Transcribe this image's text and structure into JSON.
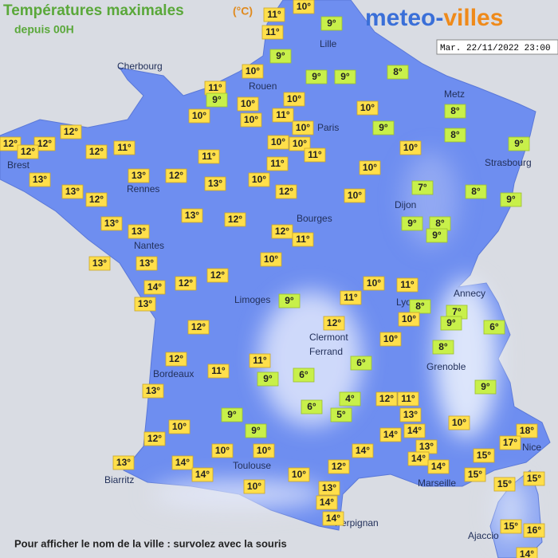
{
  "header": {
    "title": "Températures maximales",
    "unit": "(°C)",
    "subtitle": "depuis 00H"
  },
  "logo": {
    "first": "meteo-",
    "second": "villes"
  },
  "timestamp": "Mar. 22/11/2022 23:00",
  "cities": [
    "Cherbourg",
    "Lille",
    "Rouen",
    "Paris",
    "Metz",
    "Strasbourg",
    "Brest",
    "Rennes",
    "Dijon",
    "Bourges",
    "Nantes",
    "Limoges",
    "Annecy",
    "Lyon",
    "Clermont",
    "Ferrand",
    "Grenoble",
    "Bordeaux",
    "Toulouse",
    "Nice",
    "Marseille",
    "Biarritz",
    "Perpignan",
    "Ajaccio"
  ],
  "temperatures": [
    "11°",
    "10°",
    "11°",
    "9°",
    "9°",
    "9°",
    "9°",
    "8°",
    "10°",
    "11°",
    "9°",
    "10°",
    "10°",
    "10°",
    "10°",
    "11°",
    "10°",
    "8°",
    "10°",
    "9°",
    "8°",
    "12°",
    "12°",
    "12°",
    "12°",
    "12°",
    "11°",
    "10°",
    "10°",
    "10°",
    "9°",
    "11°",
    "11°",
    "11°",
    "13°",
    "13°",
    "12°",
    "13°",
    "10°",
    "10°",
    "12°",
    "13°",
    "12°",
    "7°",
    "8°",
    "10°",
    "9°",
    "13°",
    "12°",
    "13°",
    "13°",
    "9°",
    "8°",
    "9°",
    "12°",
    "11°",
    "13°",
    "10°",
    "13°",
    "12°",
    "12°",
    "10°",
    "11°",
    "14°",
    "9°",
    "11°",
    "13°",
    "8°",
    "7°",
    "10°",
    "9°",
    "6°",
    "12°",
    "12°",
    "10°",
    "8°",
    "12°",
    "11°",
    "11°",
    "6°",
    "6°",
    "9°",
    "13°",
    "4°",
    "12°",
    "11°",
    "9°",
    "6°",
    "9°",
    "5°",
    "13°",
    "10°",
    "10°",
    "9°",
    "14°",
    "14°",
    "18°",
    "12°",
    "17°",
    "10°",
    "10°",
    "14°",
    "13°",
    "14°",
    "15°",
    "13°",
    "14°",
    "14°",
    "12°",
    "14°",
    "10°",
    "15°",
    "15°",
    "15°",
    "10°",
    "13°",
    "14°",
    "14°",
    "15°",
    "16°",
    "14°"
  ],
  "footer": "Pour afficher le nom de la ville : survolez avec la souris"
}
